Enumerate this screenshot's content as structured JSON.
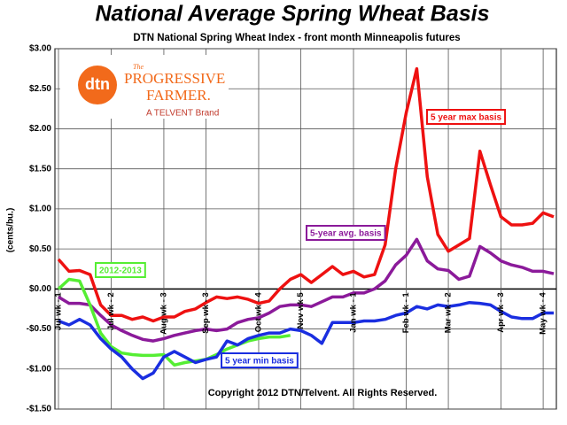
{
  "chart_data": {
    "type": "line",
    "title": "National Average Spring Wheat Basis",
    "subtitle": "DTN National Spring Wheat Index - front month Minneapolis futures",
    "y_label": "(cents/bu.)",
    "copyright": "Copyright 2012 DTN/Telvent. All Rights Reserved.",
    "logo": {
      "mark": "dtn",
      "the": "The",
      "name1": "PROGRESSIVE",
      "name2": "FARMER.",
      "brand": "A TELVENT Brand"
    },
    "categories": [
      "Jul wk - 1",
      null,
      null,
      null,
      null,
      "Jul wk - 2",
      null,
      null,
      null,
      null,
      "Aug wk - 3",
      null,
      null,
      null,
      "Sep wk - 3",
      null,
      null,
      null,
      null,
      "Oct wk - 4",
      null,
      null,
      null,
      "Nov wk 5",
      null,
      null,
      null,
      null,
      "Jan wk - 1",
      null,
      null,
      null,
      null,
      "Feb wk - 1",
      null,
      null,
      null,
      "Mar wk - 2",
      null,
      null,
      null,
      null,
      "Apr wk - 3",
      null,
      null,
      null,
      "May wk - 4",
      null
    ],
    "series": [
      {
        "name": "5 year max basis",
        "color": "#ee1111",
        "values": [
          0.37,
          0.22,
          0.23,
          0.18,
          -0.2,
          -0.33,
          -0.33,
          -0.38,
          -0.35,
          -0.4,
          -0.35,
          -0.35,
          -0.28,
          -0.25,
          -0.17,
          -0.1,
          -0.12,
          -0.1,
          -0.13,
          -0.18,
          -0.15,
          0.0,
          0.12,
          0.18,
          0.08,
          0.18,
          0.28,
          0.18,
          0.22,
          0.15,
          0.18,
          0.55,
          1.5,
          2.2,
          2.75,
          1.4,
          0.68,
          0.47,
          0.55,
          0.63,
          1.72,
          1.3,
          0.9,
          0.8,
          0.8,
          0.82,
          0.95,
          0.9
        ]
      },
      {
        "name": "5-year avg. basis",
        "color": "#8b1a9a",
        "values": [
          -0.1,
          -0.18,
          -0.18,
          -0.2,
          -0.33,
          -0.45,
          -0.52,
          -0.58,
          -0.63,
          -0.65,
          -0.62,
          -0.58,
          -0.55,
          -0.52,
          -0.5,
          -0.52,
          -0.5,
          -0.42,
          -0.38,
          -0.36,
          -0.3,
          -0.22,
          -0.2,
          -0.2,
          -0.22,
          -0.16,
          -0.1,
          -0.1,
          -0.05,
          -0.05,
          0.0,
          0.1,
          0.3,
          0.42,
          0.62,
          0.35,
          0.25,
          0.23,
          0.12,
          0.16,
          0.53,
          0.45,
          0.35,
          0.3,
          0.27,
          0.22,
          0.22,
          0.19
        ]
      },
      {
        "name": "2012-2013",
        "color": "#55ee33",
        "values": [
          0.0,
          0.12,
          0.1,
          -0.2,
          -0.55,
          -0.72,
          -0.8,
          -0.82,
          -0.83,
          -0.83,
          -0.82,
          -0.95,
          -0.92,
          -0.9,
          -0.88,
          -0.82,
          -0.75,
          -0.7,
          -0.65,
          -0.62,
          -0.6,
          -0.6,
          -0.58,
          null,
          null,
          null,
          null,
          null,
          null,
          null,
          null,
          null,
          null,
          null,
          null,
          null,
          null,
          null,
          null,
          null,
          null,
          null,
          null,
          null,
          null,
          null,
          null,
          null
        ]
      },
      {
        "name": "5 year min basis",
        "color": "#1a2ee0",
        "values": [
          -0.4,
          -0.45,
          -0.38,
          -0.45,
          -0.62,
          -0.75,
          -0.85,
          -1.0,
          -1.12,
          -1.05,
          -0.85,
          -0.78,
          -0.85,
          -0.92,
          -0.88,
          -0.85,
          -0.65,
          -0.7,
          -0.62,
          -0.58,
          -0.55,
          -0.55,
          -0.5,
          -0.52,
          -0.58,
          -0.68,
          -0.42,
          -0.42,
          -0.42,
          -0.4,
          -0.4,
          -0.38,
          -0.33,
          -0.3,
          -0.22,
          -0.25,
          -0.2,
          -0.22,
          -0.2,
          -0.17,
          -0.18,
          -0.2,
          -0.28,
          -0.35,
          -0.37,
          -0.37,
          -0.3,
          -0.3
        ]
      }
    ],
    "ylim": [
      -1.5,
      3.0
    ],
    "yticks": [
      {
        "value": 3.0,
        "label": "$3.00"
      },
      {
        "value": 2.5,
        "label": "$2.50"
      },
      {
        "value": 2.0,
        "label": "$2.00"
      },
      {
        "value": 1.5,
        "label": "$1.50"
      },
      {
        "value": 1.0,
        "label": "$1.00"
      },
      {
        "value": 0.5,
        "label": "$0.50"
      },
      {
        "value": 0,
        "label": "$0.00"
      },
      {
        "value": -0.5,
        "label": "-$0.50"
      },
      {
        "value": -1.0,
        "label": "-$1.00"
      },
      {
        "value": -1.5,
        "label": "-$1.50"
      }
    ],
    "grid": true
  }
}
